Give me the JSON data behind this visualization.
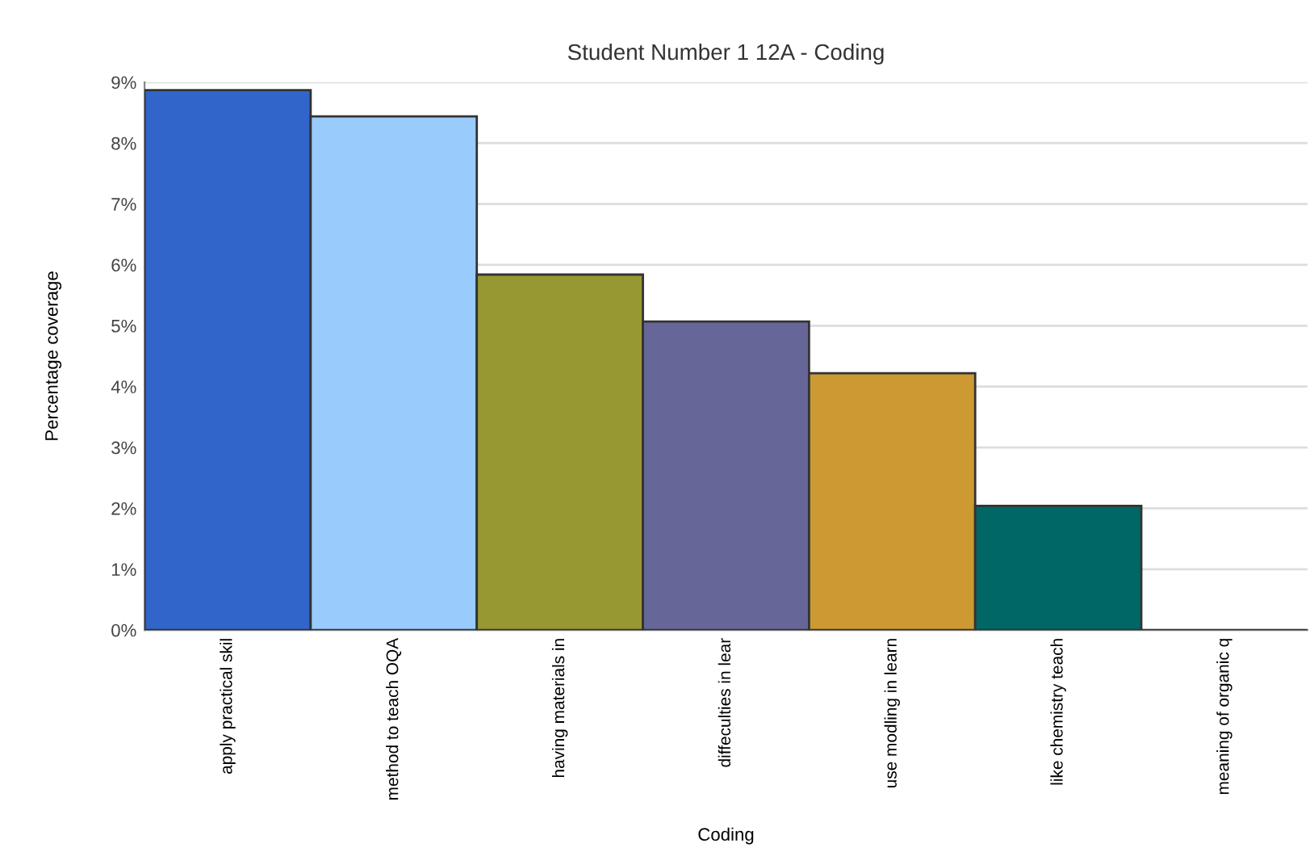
{
  "chart_data": {
    "type": "bar",
    "title": "Student Number 1 12A - Coding",
    "xlabel": "Coding",
    "ylabel": "Percentage coverage",
    "categories": [
      "apply practical skil",
      "method to teach OQA",
      "having materials in",
      "diffeculties in lear",
      "use modling in learn",
      "like chemistry teach",
      "meaning of organic q"
    ],
    "values": [
      8.87,
      8.44,
      5.84,
      5.07,
      4.22,
      2.04,
      0
    ],
    "colors": [
      "#3165c9",
      "#99ccfd",
      "#989833",
      "#666699",
      "#cc9933",
      "#006666",
      "#333333"
    ],
    "ylim": [
      0,
      9
    ],
    "yticks": [
      {
        "value": 0,
        "label": "0%"
      },
      {
        "value": 1,
        "label": "1%"
      },
      {
        "value": 2,
        "label": "2%"
      },
      {
        "value": 3,
        "label": "3%"
      },
      {
        "value": 4,
        "label": "4%"
      },
      {
        "value": 5,
        "label": "5%"
      },
      {
        "value": 6,
        "label": "6%"
      },
      {
        "value": 7,
        "label": "7%"
      },
      {
        "value": 8,
        "label": "8%"
      },
      {
        "value": 9,
        "label": "9%"
      }
    ],
    "grid": "y",
    "legend": false
  }
}
